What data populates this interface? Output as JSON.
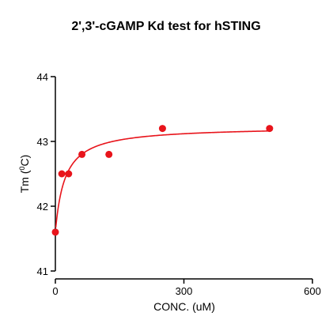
{
  "chart_data": {
    "type": "scatter",
    "title": "2',3'-cGAMP Kd test for hSTING",
    "xlabel": "CONC. (uM)",
    "ylabel_main": "Tm (",
    "ylabel_sup": "0",
    "ylabel_end": "C)",
    "xlim": [
      0,
      600
    ],
    "ylim": [
      41,
      44
    ],
    "x_ticks": [
      0,
      300,
      600
    ],
    "y_ticks": [
      41,
      42,
      43,
      44
    ],
    "x_tick_labels": [
      "0",
      "300",
      "600"
    ],
    "y_tick_labels": [
      "41",
      "42",
      "43",
      "44"
    ],
    "grid": false,
    "colors": {
      "series": "#e8141b",
      "axis": "#000000"
    },
    "series": [
      {
        "points": [
          {
            "x": 0,
            "y": 41.6
          },
          {
            "x": 15,
            "y": 42.5
          },
          {
            "x": 31,
            "y": 42.5
          },
          {
            "x": 62,
            "y": 42.8
          },
          {
            "x": 125,
            "y": 42.8
          },
          {
            "x": 250,
            "y": 43.2
          },
          {
            "x": 500,
            "y": 43.2
          }
        ],
        "fit": {
          "model": "one-site binding",
          "Tm0": 41.6,
          "Bmax": 1.63,
          "Kd": 22
        }
      }
    ]
  }
}
